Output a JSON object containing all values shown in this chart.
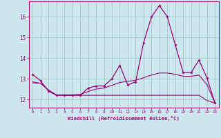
{
  "xlabel": "Windchill (Refroidissement éolien,°C)",
  "background_color": "#cce8ee",
  "grid_color": "#aacccc",
  "line_color": "#990077",
  "hours": [
    0,
    1,
    2,
    3,
    4,
    5,
    6,
    7,
    8,
    9,
    10,
    11,
    12,
    13,
    14,
    15,
    16,
    17,
    18,
    19,
    20,
    21,
    22,
    23
  ],
  "series_main": [
    13.2,
    12.9,
    12.4,
    12.2,
    12.2,
    12.2,
    12.2,
    12.55,
    12.65,
    12.65,
    13.0,
    13.65,
    12.7,
    12.85,
    14.75,
    16.0,
    16.55,
    16.0,
    14.65,
    13.3,
    13.3,
    13.9,
    13.05,
    11.85
  ],
  "series_flat": [
    12.8,
    12.78,
    12.45,
    12.2,
    12.2,
    12.2,
    12.2,
    12.2,
    12.2,
    12.2,
    12.2,
    12.2,
    12.2,
    12.2,
    12.2,
    12.2,
    12.2,
    12.2,
    12.2,
    12.2,
    12.2,
    12.2,
    11.95,
    11.82
  ],
  "series_trend": [
    12.85,
    12.78,
    12.45,
    12.22,
    12.22,
    12.22,
    12.24,
    12.38,
    12.5,
    12.55,
    12.68,
    12.82,
    12.88,
    12.92,
    13.05,
    13.18,
    13.28,
    13.28,
    13.22,
    13.12,
    13.12,
    13.18,
    12.72,
    11.85
  ],
  "ylim": [
    11.6,
    16.75
  ],
  "yticks": [
    12,
    13,
    14,
    15,
    16
  ],
  "xlim": [
    -0.5,
    23.5
  ]
}
